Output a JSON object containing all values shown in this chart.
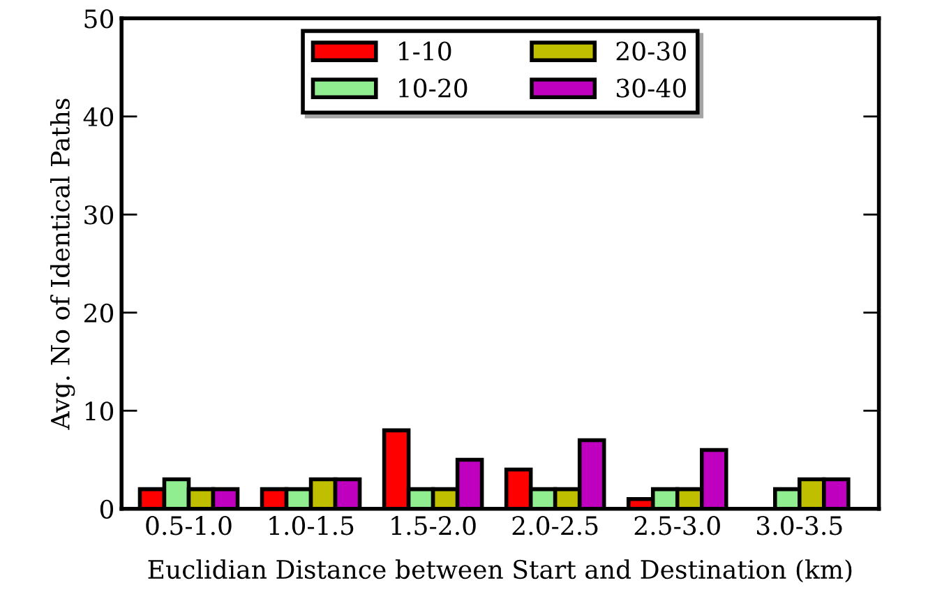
{
  "chart_data": {
    "type": "bar",
    "xlabel": "Euclidian Distance between Start and Destination (km)",
    "ylabel": "Avg. No of Identical Paths",
    "categories": [
      "0.5-1.0",
      "1.0-1.5",
      "1.5-2.0",
      "2.0-2.5",
      "2.5-3.0",
      "3.0-3.5"
    ],
    "series": [
      {
        "name": "1-10",
        "color": "#ff0000",
        "values": [
          2,
          2,
          8,
          4,
          1,
          0
        ]
      },
      {
        "name": "10-20",
        "color": "#90ee90",
        "values": [
          3,
          2,
          2,
          2,
          2,
          2
        ]
      },
      {
        "name": "20-30",
        "color": "#bfbf00",
        "values": [
          2,
          3,
          2,
          2,
          2,
          3
        ]
      },
      {
        "name": "30-40",
        "color": "#bf00bf",
        "values": [
          2,
          3,
          5,
          7,
          6,
          3
        ]
      }
    ],
    "ylim": [
      0,
      50
    ],
    "yticks": [
      0,
      10,
      20,
      30,
      40,
      50
    ],
    "grid": false,
    "legend": "top"
  }
}
